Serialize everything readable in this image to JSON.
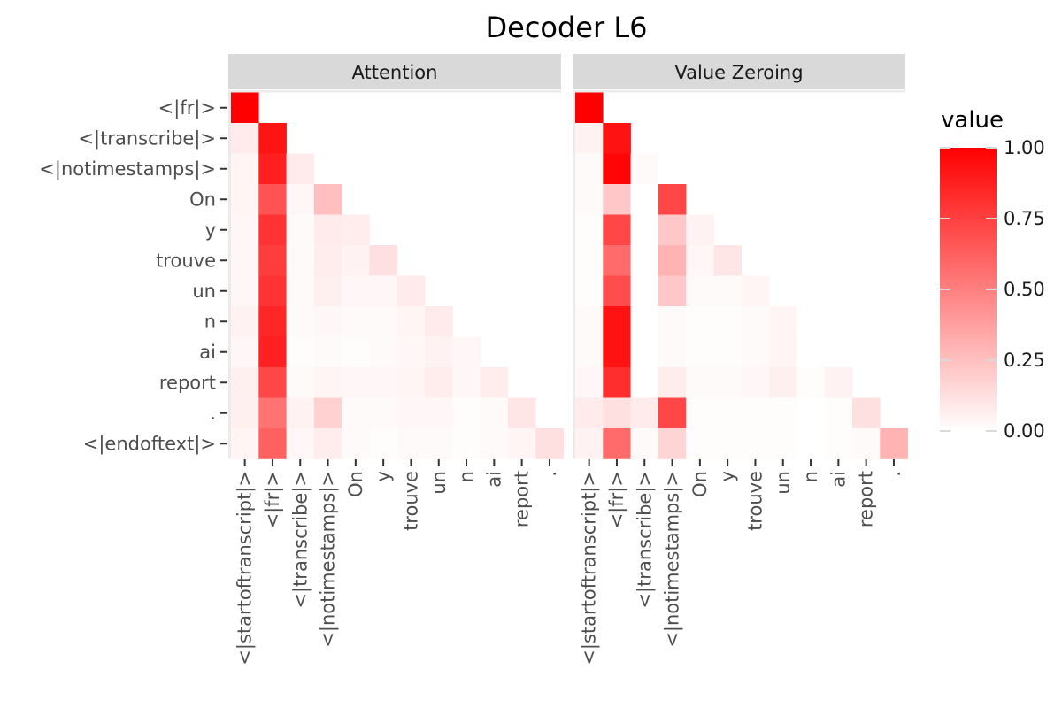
{
  "chart_data": {
    "type": "heatmap",
    "title": "Decoder L6",
    "facets": [
      "Attention",
      "Value Zeroing"
    ],
    "row_labels": [
      "<|fr|>",
      "<|transcribe|>",
      "<|notimestamps|>",
      "On",
      "y",
      "trouve",
      "un",
      "n",
      "ai",
      "report",
      ".",
      "<|endoftext|>"
    ],
    "col_labels": [
      "<|startoftranscript|>",
      "<|fr|>",
      "<|transcribe|>",
      "<|notimestamps|>",
      "On",
      "y",
      "trouve",
      "un",
      "n",
      "ai",
      "report",
      "."
    ],
    "legend": {
      "title": "value",
      "ticks": [
        "1.00",
        "0.75",
        "0.50",
        "0.25",
        "0.00"
      ],
      "tick_values": [
        1.0,
        0.75,
        0.5,
        0.25,
        0.0
      ],
      "low_color": "#ffffff",
      "high_color": "#ff0000",
      "placement": "right"
    },
    "panels": [
      {
        "name": "Attention",
        "values": [
          [
            1.0
          ],
          [
            0.08,
            0.92
          ],
          [
            0.04,
            0.88,
            0.08
          ],
          [
            0.04,
            0.68,
            0.03,
            0.25
          ],
          [
            0.03,
            0.8,
            0.02,
            0.08,
            0.07
          ],
          [
            0.03,
            0.76,
            0.02,
            0.07,
            0.05,
            0.12
          ],
          [
            0.03,
            0.8,
            0.02,
            0.06,
            0.03,
            0.03,
            0.08
          ],
          [
            0.05,
            0.85,
            0.02,
            0.03,
            0.02,
            0.02,
            0.04,
            0.08
          ],
          [
            0.03,
            0.87,
            0.01,
            0.02,
            0.01,
            0.02,
            0.03,
            0.05,
            0.03
          ],
          [
            0.06,
            0.72,
            0.02,
            0.04,
            0.03,
            0.03,
            0.04,
            0.07,
            0.03,
            0.07
          ],
          [
            0.06,
            0.55,
            0.05,
            0.18,
            0.02,
            0.02,
            0.03,
            0.03,
            0.01,
            0.02,
            0.1
          ],
          [
            0.04,
            0.62,
            0.03,
            0.07,
            0.02,
            0.01,
            0.02,
            0.02,
            0.01,
            0.02,
            0.04,
            0.12
          ]
        ]
      },
      {
        "name": "Value Zeroing",
        "values": [
          [
            1.0
          ],
          [
            0.05,
            0.93
          ],
          [
            0.02,
            0.98,
            0.02
          ],
          [
            0.02,
            0.22,
            0.0,
            0.72
          ],
          [
            0.01,
            0.72,
            0.0,
            0.22,
            0.05
          ],
          [
            0.01,
            0.58,
            0.0,
            0.3,
            0.03,
            0.1
          ],
          [
            0.01,
            0.7,
            0.0,
            0.22,
            0.02,
            0.02,
            0.04
          ],
          [
            0.02,
            0.93,
            0.0,
            0.02,
            0.01,
            0.01,
            0.02,
            0.04
          ],
          [
            0.02,
            0.93,
            0.0,
            0.02,
            0.01,
            0.01,
            0.02,
            0.04,
            0.0
          ],
          [
            0.03,
            0.82,
            0.0,
            0.07,
            0.02,
            0.02,
            0.03,
            0.06,
            0.01,
            0.05
          ],
          [
            0.08,
            0.12,
            0.08,
            0.72,
            0.01,
            0.01,
            0.01,
            0.01,
            0.0,
            0.01,
            0.12
          ],
          [
            0.05,
            0.58,
            0.02,
            0.17,
            0.01,
            0.01,
            0.01,
            0.01,
            0.0,
            0.01,
            0.02,
            0.3
          ]
        ]
      }
    ]
  }
}
